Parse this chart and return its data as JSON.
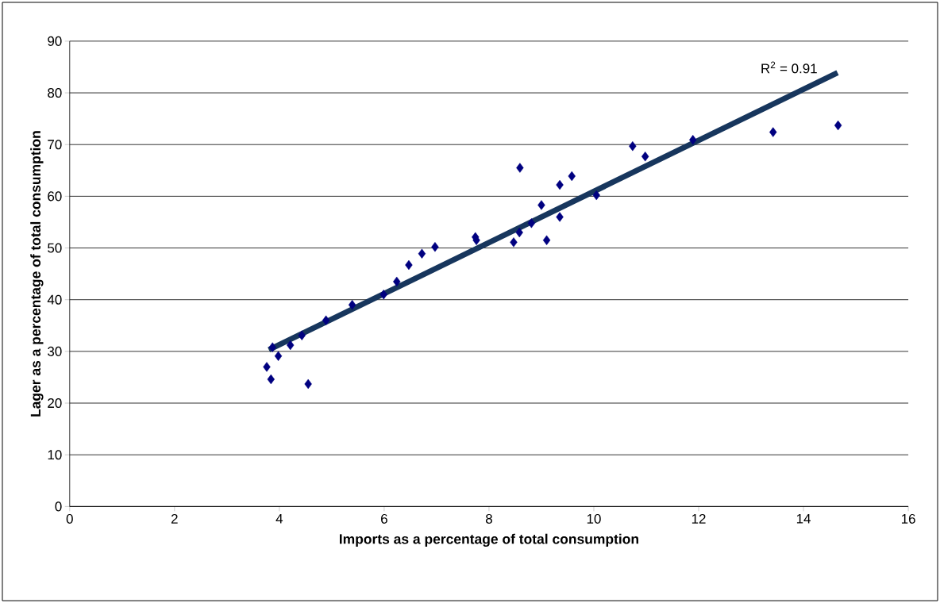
{
  "chart_data": {
    "type": "scatter",
    "xlabel": "Imports as a percentage of total consumption",
    "ylabel": "Lager as a percentage of total consumption",
    "xlim": [
      0,
      16
    ],
    "xticks": [
      0,
      2,
      4,
      6,
      8,
      10,
      12,
      14,
      16
    ],
    "ylim": [
      0,
      90
    ],
    "yticks": [
      0,
      10,
      20,
      30,
      40,
      50,
      60,
      70,
      80,
      90
    ],
    "grid": "y",
    "marker": "diamond",
    "annotations": [
      "R$^{2}$ = 0.91"
    ],
    "series": [
      {
        "color": "#000080",
        "x": [
          3.76,
          3.84,
          3.87,
          3.98,
          4.21,
          4.43,
          4.55,
          4.89,
          5.39,
          5.99,
          6.24,
          6.47,
          6.72,
          6.97,
          7.74,
          7.76,
          8.47,
          8.58,
          8.59,
          8.81,
          9.0,
          9.1,
          9.35,
          9.35,
          9.58,
          10.05,
          10.74,
          10.98,
          11.89,
          13.42,
          14.66
        ],
        "values": [
          27.0,
          24.6,
          30.8,
          29.1,
          31.2,
          33.1,
          23.7,
          36.0,
          39.0,
          41.0,
          43.5,
          46.7,
          48.9,
          50.2,
          52.1,
          51.5,
          51.1,
          53.0,
          65.5,
          54.8,
          58.3,
          51.5,
          56.0,
          62.2,
          63.9,
          60.2,
          69.7,
          67.7,
          70.9,
          72.4,
          73.7
        ]
      },
      {
        "type": "line",
        "marker": "none",
        "color": "#17365d",
        "x": [
          3.8,
          14.65
        ],
        "values": [
          30.3,
          83.9
        ]
      }
    ]
  }
}
